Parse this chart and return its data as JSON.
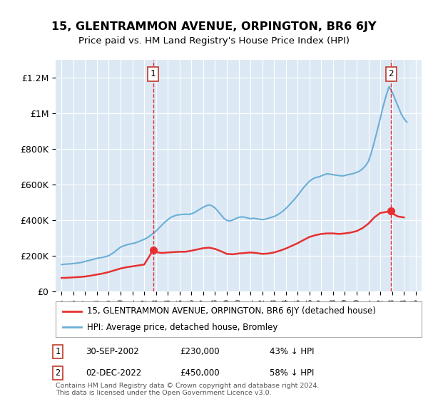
{
  "title": "15, GLENTRAMMON AVENUE, ORPINGTON, BR6 6JY",
  "subtitle": "Price paid vs. HM Land Registry's House Price Index (HPI)",
  "legend_label_red": "15, GLENTRAMMON AVENUE, ORPINGTON, BR6 6JY (detached house)",
  "legend_label_blue": "HPI: Average price, detached house, Bromley",
  "annotation1": {
    "label": "1",
    "date": "30-SEP-2002",
    "price": "£230,000",
    "pct": "43% ↓ HPI",
    "x_year": 2002.75
  },
  "annotation2": {
    "label": "2",
    "date": "02-DEC-2022",
    "price": "£450,000",
    "pct": "58% ↓ HPI",
    "x_year": 2022.92
  },
  "footer1": "Contains HM Land Registry data © Crown copyright and database right 2024.",
  "footer2": "This data is licensed under the Open Government Licence v3.0.",
  "xlim": [
    1994.5,
    2025.5
  ],
  "ylim": [
    0,
    1300000
  ],
  "yticks": [
    0,
    200000,
    400000,
    600000,
    800000,
    1000000,
    1200000
  ],
  "ytick_labels": [
    "£0",
    "£200K",
    "£400K",
    "£600K",
    "£800K",
    "£1M",
    "£1.2M"
  ],
  "bg_color": "#dce9f5",
  "plot_bg": "#dce9f5",
  "hpi_years": [
    1995.0,
    1995.25,
    1995.5,
    1995.75,
    1996.0,
    1996.25,
    1996.5,
    1996.75,
    1997.0,
    1997.25,
    1997.5,
    1997.75,
    1998.0,
    1998.25,
    1998.5,
    1998.75,
    1999.0,
    1999.25,
    1999.5,
    1999.75,
    2000.0,
    2000.25,
    2000.5,
    2000.75,
    2001.0,
    2001.25,
    2001.5,
    2001.75,
    2002.0,
    2002.25,
    2002.5,
    2002.75,
    2003.0,
    2003.25,
    2003.5,
    2003.75,
    2004.0,
    2004.25,
    2004.5,
    2004.75,
    2005.0,
    2005.25,
    2005.5,
    2005.75,
    2006.0,
    2006.25,
    2006.5,
    2006.75,
    2007.0,
    2007.25,
    2007.5,
    2007.75,
    2008.0,
    2008.25,
    2008.5,
    2008.75,
    2009.0,
    2009.25,
    2009.5,
    2009.75,
    2010.0,
    2010.25,
    2010.5,
    2010.75,
    2011.0,
    2011.25,
    2011.5,
    2011.75,
    2012.0,
    2012.25,
    2012.5,
    2012.75,
    2013.0,
    2013.25,
    2013.5,
    2013.75,
    2014.0,
    2014.25,
    2014.5,
    2014.75,
    2015.0,
    2015.25,
    2015.5,
    2015.75,
    2016.0,
    2016.25,
    2016.5,
    2016.75,
    2017.0,
    2017.25,
    2017.5,
    2017.75,
    2018.0,
    2018.25,
    2018.5,
    2018.75,
    2019.0,
    2019.25,
    2019.5,
    2019.75,
    2020.0,
    2020.25,
    2020.5,
    2020.75,
    2021.0,
    2021.25,
    2021.5,
    2021.75,
    2022.0,
    2022.25,
    2022.5,
    2022.75,
    2023.0,
    2023.25,
    2023.5,
    2023.75,
    2024.0,
    2024.25
  ],
  "hpi_values": [
    150000,
    152000,
    153000,
    154000,
    156000,
    158000,
    160000,
    163000,
    168000,
    172000,
    176000,
    180000,
    185000,
    188000,
    191000,
    195000,
    200000,
    210000,
    222000,
    235000,
    248000,
    255000,
    260000,
    265000,
    268000,
    272000,
    278000,
    285000,
    292000,
    300000,
    312000,
    325000,
    338000,
    355000,
    372000,
    388000,
    402000,
    415000,
    422000,
    428000,
    430000,
    432000,
    433000,
    432000,
    435000,
    442000,
    452000,
    462000,
    472000,
    480000,
    485000,
    480000,
    468000,
    450000,
    430000,
    410000,
    398000,
    395000,
    400000,
    408000,
    415000,
    418000,
    416000,
    412000,
    408000,
    410000,
    408000,
    405000,
    402000,
    405000,
    410000,
    415000,
    420000,
    428000,
    438000,
    450000,
    465000,
    482000,
    500000,
    518000,
    538000,
    560000,
    582000,
    600000,
    618000,
    630000,
    638000,
    642000,
    648000,
    655000,
    660000,
    658000,
    655000,
    652000,
    650000,
    648000,
    650000,
    655000,
    658000,
    662000,
    668000,
    675000,
    688000,
    705000,
    730000,
    780000,
    840000,
    905000,
    970000,
    1040000,
    1100000,
    1150000,
    1120000,
    1080000,
    1040000,
    1000000,
    970000,
    950000
  ],
  "red_years": [
    1995.0,
    1995.5,
    1996.0,
    1996.5,
    1997.0,
    1997.5,
    1998.0,
    1998.5,
    1999.0,
    1999.5,
    2000.0,
    2000.5,
    2001.0,
    2001.5,
    2002.0,
    2002.75,
    2003.0,
    2003.5,
    2004.0,
    2004.5,
    2005.0,
    2005.5,
    2006.0,
    2006.5,
    2007.0,
    2007.5,
    2008.0,
    2008.5,
    2009.0,
    2009.5,
    2010.0,
    2010.5,
    2011.0,
    2011.5,
    2012.0,
    2012.5,
    2013.0,
    2013.5,
    2014.0,
    2014.5,
    2015.0,
    2015.5,
    2016.0,
    2016.5,
    2017.0,
    2017.5,
    2018.0,
    2018.5,
    2019.0,
    2019.5,
    2020.0,
    2020.5,
    2021.0,
    2021.5,
    2022.0,
    2022.92,
    2023.0,
    2023.5,
    2024.0
  ],
  "red_values": [
    75000,
    76000,
    78000,
    80000,
    83000,
    88000,
    94000,
    100000,
    108000,
    118000,
    128000,
    135000,
    140000,
    145000,
    150000,
    230000,
    220000,
    215000,
    218000,
    220000,
    222000,
    222000,
    228000,
    235000,
    242000,
    245000,
    238000,
    225000,
    210000,
    208000,
    212000,
    215000,
    218000,
    215000,
    210000,
    212000,
    218000,
    228000,
    240000,
    255000,
    270000,
    288000,
    305000,
    315000,
    322000,
    325000,
    325000,
    322000,
    325000,
    330000,
    338000,
    355000,
    380000,
    415000,
    440000,
    450000,
    438000,
    420000,
    415000
  ],
  "sale1_x": 2002.75,
  "sale1_y": 230000,
  "sale2_x": 2022.92,
  "sale2_y": 450000,
  "xticks": [
    1995,
    1996,
    1997,
    1998,
    1999,
    2000,
    2001,
    2002,
    2003,
    2004,
    2005,
    2006,
    2007,
    2008,
    2009,
    2010,
    2011,
    2012,
    2013,
    2014,
    2015,
    2016,
    2017,
    2018,
    2019,
    2020,
    2021,
    2022,
    2023,
    2024,
    2025
  ]
}
